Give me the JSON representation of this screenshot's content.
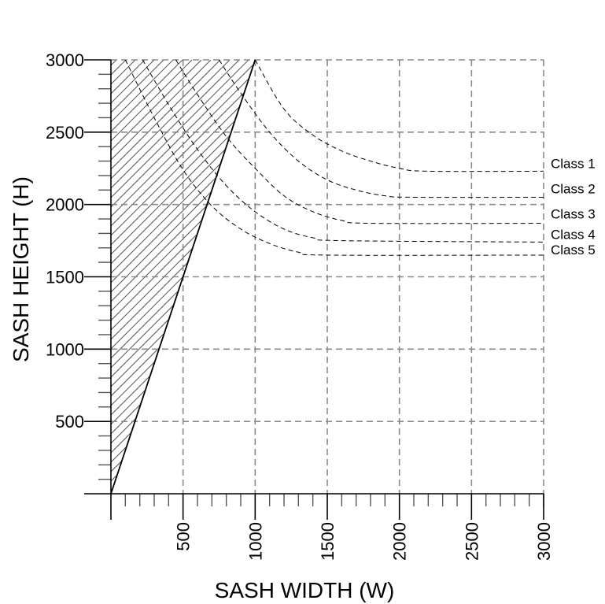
{
  "chart_data": {
    "type": "line",
    "xlabel": "SASH WIDTH (W)",
    "ylabel": "SASH HEIGHT (H)",
    "xlim": [
      0,
      3000
    ],
    "ylim": [
      0,
      3000
    ],
    "x_ticks": [
      500,
      1000,
      1500,
      2000,
      2500,
      3000
    ],
    "y_ticks": [
      500,
      1000,
      1500,
      2000,
      2500,
      3000
    ],
    "grid": true,
    "limit_line": {
      "description_shown": false,
      "points": [
        [
          0,
          0
        ],
        [
          1000,
          3000
        ]
      ]
    },
    "series": [
      {
        "name": "Class 1",
        "points": [
          [
            1000,
            3000
          ],
          [
            1200,
            2660
          ],
          [
            1400,
            2480
          ],
          [
            1600,
            2370
          ],
          [
            1800,
            2300
          ],
          [
            2000,
            2250
          ],
          [
            2200,
            2230
          ],
          [
            3000,
            2230
          ]
        ]
      },
      {
        "name": "Class 2",
        "points": [
          [
            750,
            3000
          ],
          [
            900,
            2770
          ],
          [
            1100,
            2500
          ],
          [
            1300,
            2300
          ],
          [
            1500,
            2170
          ],
          [
            1700,
            2100
          ],
          [
            1900,
            2060
          ],
          [
            2100,
            2050
          ],
          [
            3000,
            2050
          ]
        ]
      },
      {
        "name": "Class 3",
        "points": [
          [
            450,
            3000
          ],
          [
            600,
            2760
          ],
          [
            800,
            2470
          ],
          [
            1000,
            2250
          ],
          [
            1200,
            2060
          ],
          [
            1400,
            1950
          ],
          [
            1600,
            1890
          ],
          [
            1800,
            1870
          ],
          [
            3000,
            1870
          ]
        ]
      },
      {
        "name": "Class 4",
        "points": [
          [
            220,
            3000
          ],
          [
            400,
            2690
          ],
          [
            600,
            2380
          ],
          [
            800,
            2130
          ],
          [
            1000,
            1950
          ],
          [
            1200,
            1830
          ],
          [
            1400,
            1770
          ],
          [
            1600,
            1750
          ],
          [
            3000,
            1740
          ]
        ]
      },
      {
        "name": "Class 5",
        "points": [
          [
            100,
            3000
          ],
          [
            300,
            2600
          ],
          [
            500,
            2240
          ],
          [
            700,
            1990
          ],
          [
            900,
            1830
          ],
          [
            1100,
            1730
          ],
          [
            1300,
            1670
          ],
          [
            1500,
            1650
          ],
          [
            3000,
            1650
          ]
        ]
      }
    ]
  }
}
